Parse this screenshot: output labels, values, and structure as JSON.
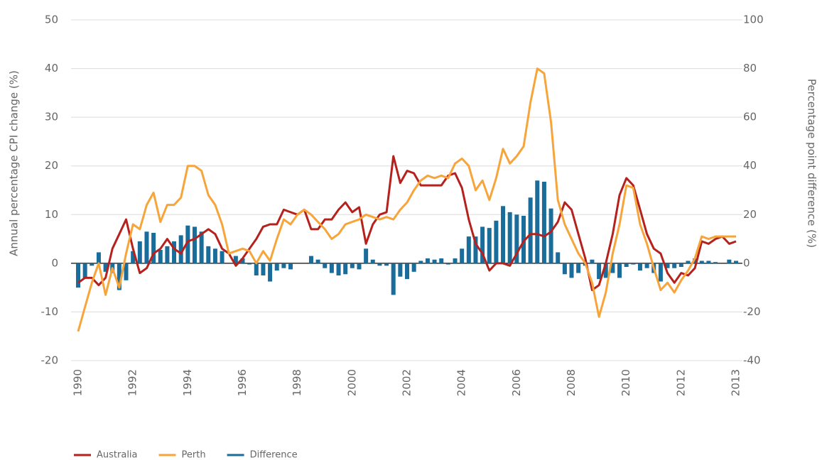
{
  "chart_data": {
    "type": "line",
    "y_label": "Annual percentage CPI change (%)",
    "y2_label": "Percentage point difference (%)",
    "categories": [
      "1990",
      null,
      null,
      null,
      null,
      null,
      null,
      null,
      "1992",
      null,
      null,
      null,
      null,
      null,
      null,
      null,
      "1994",
      null,
      null,
      null,
      null,
      null,
      null,
      null,
      "1996",
      null,
      null,
      null,
      null,
      null,
      null,
      null,
      "1998",
      null,
      null,
      null,
      null,
      null,
      null,
      null,
      "2000",
      null,
      null,
      null,
      null,
      null,
      null,
      null,
      "2002",
      null,
      null,
      null,
      null,
      null,
      null,
      null,
      "2004",
      null,
      null,
      null,
      null,
      null,
      null,
      null,
      "2006",
      null,
      null,
      null,
      null,
      null,
      null,
      null,
      "2008",
      null,
      null,
      null,
      null,
      null,
      null,
      null,
      "2010",
      null,
      null,
      null,
      null,
      null,
      null,
      null,
      "2012",
      null,
      null,
      null,
      null,
      null,
      null,
      null,
      "2013"
    ],
    "ylim": [
      -20,
      50
    ],
    "yticks": [
      -20,
      -10,
      0,
      10,
      20,
      30,
      40,
      50
    ],
    "y2lim": [
      -40,
      100
    ],
    "y2ticks": [
      -40,
      -20,
      0,
      20,
      40,
      60,
      80,
      100
    ],
    "grid": true,
    "legend": "bottom-left",
    "series": [
      {
        "name": "Australia",
        "color": "#b5211c",
        "values": [
          -4,
          -3,
          -3,
          -4.5,
          -3,
          3,
          6,
          9,
          3,
          -2,
          -1,
          2,
          3,
          5,
          3,
          2,
          4.5,
          5,
          6,
          7,
          6,
          3,
          2,
          -0.5,
          1,
          3,
          5,
          7.5,
          8,
          8,
          11,
          10.5,
          10,
          11,
          7,
          7,
          9,
          9,
          11,
          12.5,
          10.5,
          11.5,
          4,
          8,
          10,
          10.5,
          22,
          16.5,
          19,
          18.5,
          16,
          16,
          16,
          16,
          18,
          18.5,
          15.5,
          9,
          4,
          2,
          -1.5,
          0,
          0,
          -0.5,
          2,
          4.5,
          6,
          6,
          5.5,
          6.5,
          8.5,
          12.5,
          11,
          6,
          1,
          -5.5,
          -4.5,
          0,
          6,
          14,
          17.5,
          16,
          11,
          6,
          3,
          2,
          -2,
          -4,
          -2,
          -2.5,
          -1,
          4.5,
          4,
          5,
          5.5,
          4,
          4.5
        ]
      },
      {
        "name": "Perth",
        "color": "#f7a43a",
        "values": [
          -14,
          -9,
          -4,
          0,
          -6.5,
          -1,
          -5,
          2,
          8,
          7,
          12,
          14.5,
          8.5,
          12,
          12,
          13.5,
          20,
          20,
          19,
          14,
          12,
          8,
          2,
          2.5,
          3,
          2.5,
          0,
          2.5,
          0.5,
          5,
          9,
          8,
          10,
          11,
          10,
          8.5,
          7,
          5,
          6,
          8,
          8.5,
          9,
          10,
          9.5,
          9,
          9.5,
          9,
          11,
          12.5,
          15,
          17,
          18,
          17.5,
          18,
          17.5,
          20.5,
          21.5,
          20,
          15,
          17,
          13,
          17.5,
          23.5,
          20.5,
          22,
          24,
          33,
          40,
          39,
          29,
          13,
          8,
          5,
          2,
          0,
          -4,
          -11,
          -6,
          2,
          8,
          16,
          15.5,
          8,
          4,
          -1,
          -5.5,
          -4,
          -6,
          -3.5,
          -1.5,
          1,
          5.5,
          5,
          5.5,
          5.5,
          5.5,
          5.5
        ]
      },
      {
        "name": "Difference",
        "color": "#1a6d9a",
        "type": "bar",
        "axis": "y2",
        "values": [
          -10,
          -6,
          -1,
          4.5,
          -3.5,
          -4,
          -11,
          -7,
          5,
          9,
          13,
          12.5,
          5.5,
          7,
          9,
          11.5,
          15.5,
          15,
          13,
          7,
          6,
          5,
          0,
          3,
          2,
          -0.5,
          -5,
          -5,
          -7.5,
          -3,
          -2,
          -2.5,
          0,
          0,
          3,
          1.5,
          -2,
          -4,
          -5,
          -4.5,
          -2,
          -2.5,
          6,
          1.5,
          -1,
          -1,
          -13,
          -5.5,
          -6.5,
          -3.5,
          1,
          2,
          1.5,
          2,
          -0.5,
          2,
          6,
          11,
          11,
          15,
          14.5,
          17.5,
          23.5,
          21,
          20,
          19.5,
          27,
          34,
          33.5,
          22.5,
          4.5,
          -4.5,
          -6,
          -4,
          -1,
          1.5,
          -6.5,
          -6,
          -4,
          -6,
          -1.5,
          -0.5,
          -3,
          -2,
          -4,
          -7.5,
          -2,
          -2,
          -1.5,
          1,
          2,
          1,
          1,
          0.5,
          0,
          1.5,
          1
        ]
      }
    ]
  }
}
